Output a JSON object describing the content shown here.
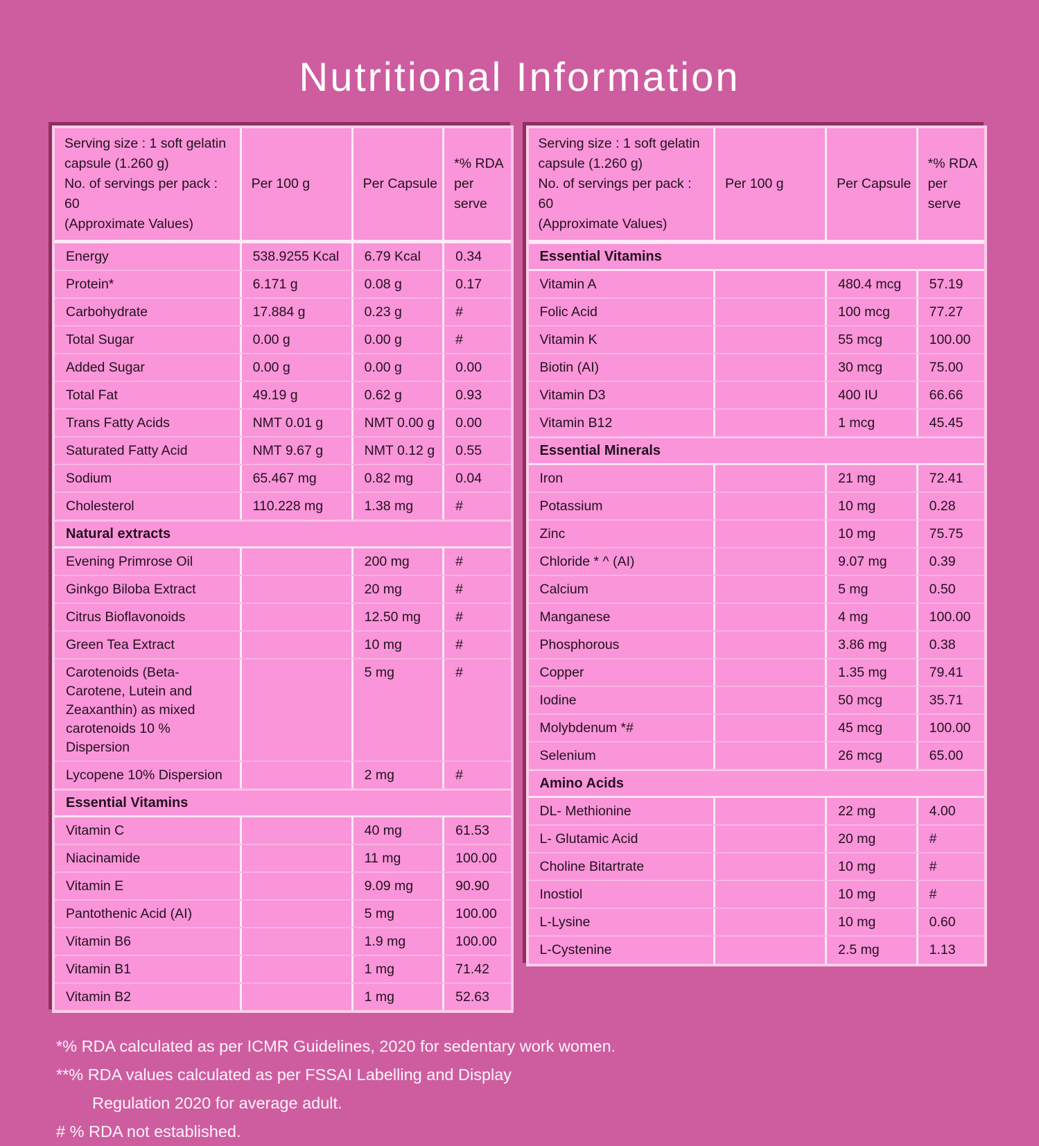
{
  "title": "Nutritional Information",
  "colors": {
    "background": "#ce5da0",
    "cell_pink": "#f995d8",
    "row_divider": "#fcb4e3",
    "column_divider": "#fdeaf7",
    "table_border": "#fbcdea",
    "table_shadow": "#8f2f60",
    "text": "#24101f",
    "title_text": "#ffffff"
  },
  "tables": [
    {
      "header_info": "Serving size : 1 soft gelatin\ncapsule (1.260 g)\nNo. of servings per pack : 60\n(Approximate Values)",
      "columns": [
        "Per 100 g",
        "Per Capsule",
        "*% RDA\nper serve"
      ],
      "sections": [
        {
          "title": "",
          "rows": [
            [
              "Energy",
              "538.9255 Kcal",
              "6.79 Kcal",
              "0.34"
            ],
            [
              "Protein*",
              "6.171 g",
              "0.08 g",
              "0.17"
            ],
            [
              "Carbohydrate",
              "17.884 g",
              "0.23 g",
              "#"
            ],
            [
              "Total Sugar",
              "0.00 g",
              "0.00 g",
              "#"
            ],
            [
              "Added Sugar",
              "0.00 g",
              "0.00 g",
              "0.00"
            ],
            [
              "Total Fat",
              "49.19 g",
              "0.62 g",
              "0.93"
            ],
            [
              "Trans Fatty Acids",
              "NMT 0.01 g",
              "NMT 0.00 g",
              "0.00"
            ],
            [
              "Saturated Fatty Acid",
              "NMT 9.67 g",
              "NMT 0.12 g",
              "0.55"
            ],
            [
              "Sodium",
              "65.467 mg",
              "0.82 mg",
              "0.04"
            ],
            [
              "Cholesterol",
              "110.228 mg",
              "1.38 mg",
              "#"
            ]
          ]
        },
        {
          "title": "Natural extracts",
          "rows": [
            [
              "Evening Primrose Oil",
              "",
              "200 mg",
              "#"
            ],
            [
              "Ginkgo Biloba Extract",
              "",
              "20 mg",
              "#"
            ],
            [
              "Citrus Bioflavonoids",
              "",
              "12.50 mg",
              "#"
            ],
            [
              "Green Tea Extract",
              "",
              "10 mg",
              "#"
            ],
            [
              "Carotenoids (Beta-Carotene, Lutein and Zeaxanthin) as mixed carotenoids 10 % Dispersion",
              "",
              "5 mg",
              "#"
            ],
            [
              "Lycopene 10% Dispersion",
              "",
              "2 mg",
              "#"
            ]
          ]
        },
        {
          "title": "Essential Vitamins",
          "rows": [
            [
              "Vitamin C",
              "",
              "40 mg",
              "61.53"
            ],
            [
              "Niacinamide",
              "",
              "11 mg",
              "100.00"
            ],
            [
              "Vitamin E",
              "",
              "9.09 mg",
              "90.90"
            ],
            [
              "Pantothenic Acid (AI)",
              "",
              "5 mg",
              "100.00"
            ],
            [
              "Vitamin B6",
              "",
              "1.9 mg",
              "100.00"
            ],
            [
              "Vitamin B1",
              "",
              "1 mg",
              "71.42"
            ],
            [
              "Vitamin B2",
              "",
              "1 mg",
              "52.63"
            ]
          ]
        }
      ]
    },
    {
      "header_info": "Serving size : 1 soft gelatin\ncapsule (1.260 g)\nNo. of servings per pack : 60\n(Approximate Values)",
      "columns": [
        "Per 100 g",
        "Per Capsule",
        "*% RDA\nper serve"
      ],
      "sections": [
        {
          "title": "Essential Vitamins",
          "rows": [
            [
              "Vitamin A",
              "",
              "480.4 mcg",
              "57.19"
            ],
            [
              "Folic Acid",
              "",
              "100 mcg",
              "77.27"
            ],
            [
              "Vitamin K",
              "",
              "55 mcg",
              "100.00"
            ],
            [
              "Biotin (AI)",
              "",
              "30 mcg",
              "75.00"
            ],
            [
              "Vitamin D3",
              "",
              "400 IU",
              "66.66"
            ],
            [
              "Vitamin B12",
              "",
              "1 mcg",
              "45.45"
            ]
          ]
        },
        {
          "title": "Essential Minerals",
          "rows": [
            [
              "Iron",
              "",
              "21 mg",
              "72.41"
            ],
            [
              "Potassium",
              "",
              "10 mg",
              "0.28"
            ],
            [
              "Zinc",
              "",
              "10 mg",
              "75.75"
            ],
            [
              "Chloride * ^ (AI)",
              "",
              "9.07 mg",
              "0.39"
            ],
            [
              "Calcium",
              "",
              "5 mg",
              "0.50"
            ],
            [
              "Manganese",
              "",
              "4 mg",
              "100.00"
            ],
            [
              "Phosphorous",
              "",
              "3.86 mg",
              "0.38"
            ],
            [
              "Copper",
              "",
              "1.35 mg",
              "79.41"
            ],
            [
              "Iodine",
              "",
              "50 mcg",
              "35.71"
            ],
            [
              "Molybdenum *#",
              "",
              "45 mcg",
              "100.00"
            ],
            [
              "Selenium",
              "",
              "26 mcg",
              "65.00"
            ]
          ]
        },
        {
          "title": "Amino Acids",
          "rows": [
            [
              "DL- Methionine",
              "",
              "22 mg",
              "4.00"
            ],
            [
              "L- Glutamic Acid",
              "",
              "20 mg",
              "#"
            ],
            [
              "Choline Bitartrate",
              "",
              "10 mg",
              "#"
            ],
            [
              "Inostiol",
              "",
              "10 mg",
              "#"
            ],
            [
              "L-Lysine",
              "",
              "10 mg",
              "0.60"
            ],
            [
              "L-Cystenine",
              "",
              "2.5 mg",
              "1.13"
            ]
          ]
        }
      ]
    }
  ],
  "footnotes": [
    "*% RDA calculated as per ICMR Guidelines, 2020 for sedentary work women.",
    "**% RDA values calculated as per FSSAI Labelling and Display",
    "Regulation 2020 for average adult.",
    "# % RDA not established."
  ]
}
